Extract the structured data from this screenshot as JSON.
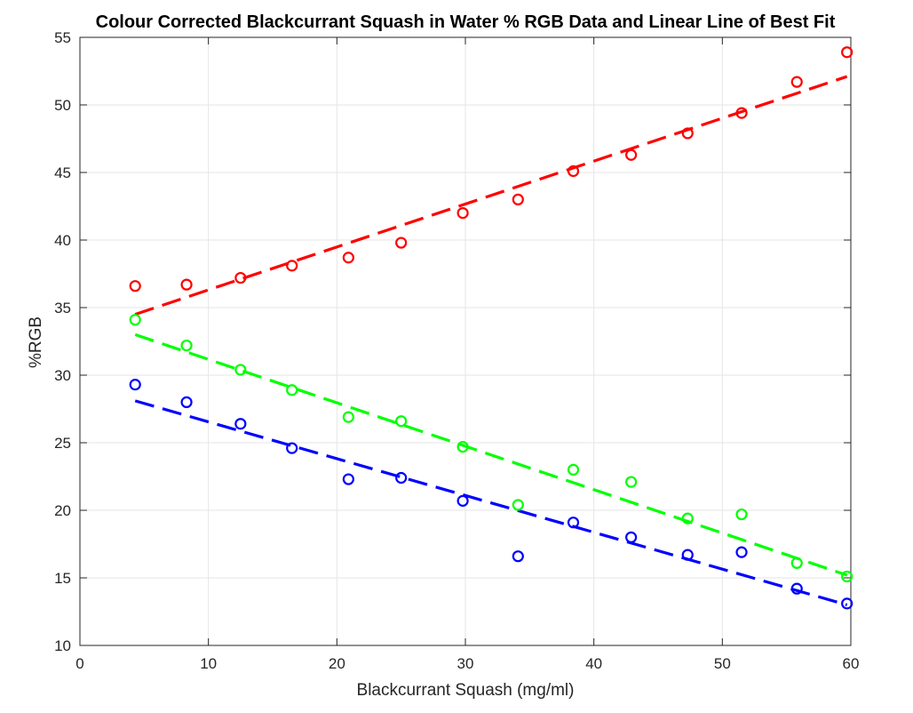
{
  "chart_data": {
    "type": "scatter",
    "title": "Colour Corrected Blackcurrant Squash in Water % RGB Data and Linear Line of Best Fit",
    "xlabel": "Blackcurrant Squash (mg/ml)",
    "ylabel": "%RGB",
    "xlim": [
      0,
      60
    ],
    "ylim": [
      10,
      55
    ],
    "xticks": [
      0,
      10,
      20,
      30,
      40,
      50,
      60
    ],
    "yticks": [
      10,
      15,
      20,
      25,
      30,
      35,
      40,
      45,
      50,
      55
    ],
    "grid": true,
    "legend": "none",
    "x": [
      4.3,
      8.3,
      12.5,
      16.5,
      20.9,
      25.0,
      29.8,
      34.1,
      38.4,
      42.9,
      47.3,
      51.5,
      55.8,
      59.7
    ],
    "series": [
      {
        "color": "#ff0000",
        "values": [
          36.6,
          36.7,
          37.2,
          38.1,
          38.7,
          39.8,
          42.0,
          43.0,
          45.1,
          46.3,
          47.9,
          49.4,
          51.7,
          53.9
        ],
        "fit": {
          "x": [
            4.3,
            59.7
          ],
          "y": [
            34.5,
            52.1
          ]
        }
      },
      {
        "color": "#00ff00",
        "values": [
          34.1,
          32.2,
          30.4,
          28.9,
          26.9,
          26.6,
          24.7,
          20.4,
          23.0,
          22.1,
          19.4,
          19.7,
          16.1,
          15.1
        ],
        "fit": {
          "x": [
            4.3,
            59.7
          ],
          "y": [
            33.0,
            15.2
          ]
        }
      },
      {
        "color": "#0000ff",
        "values": [
          29.3,
          28.0,
          26.4,
          24.6,
          22.3,
          22.4,
          20.7,
          16.6,
          19.1,
          18.0,
          16.7,
          16.9,
          14.2,
          13.1
        ],
        "fit": {
          "x": [
            4.3,
            59.7
          ],
          "y": [
            28.1,
            13.0
          ]
        }
      }
    ]
  }
}
